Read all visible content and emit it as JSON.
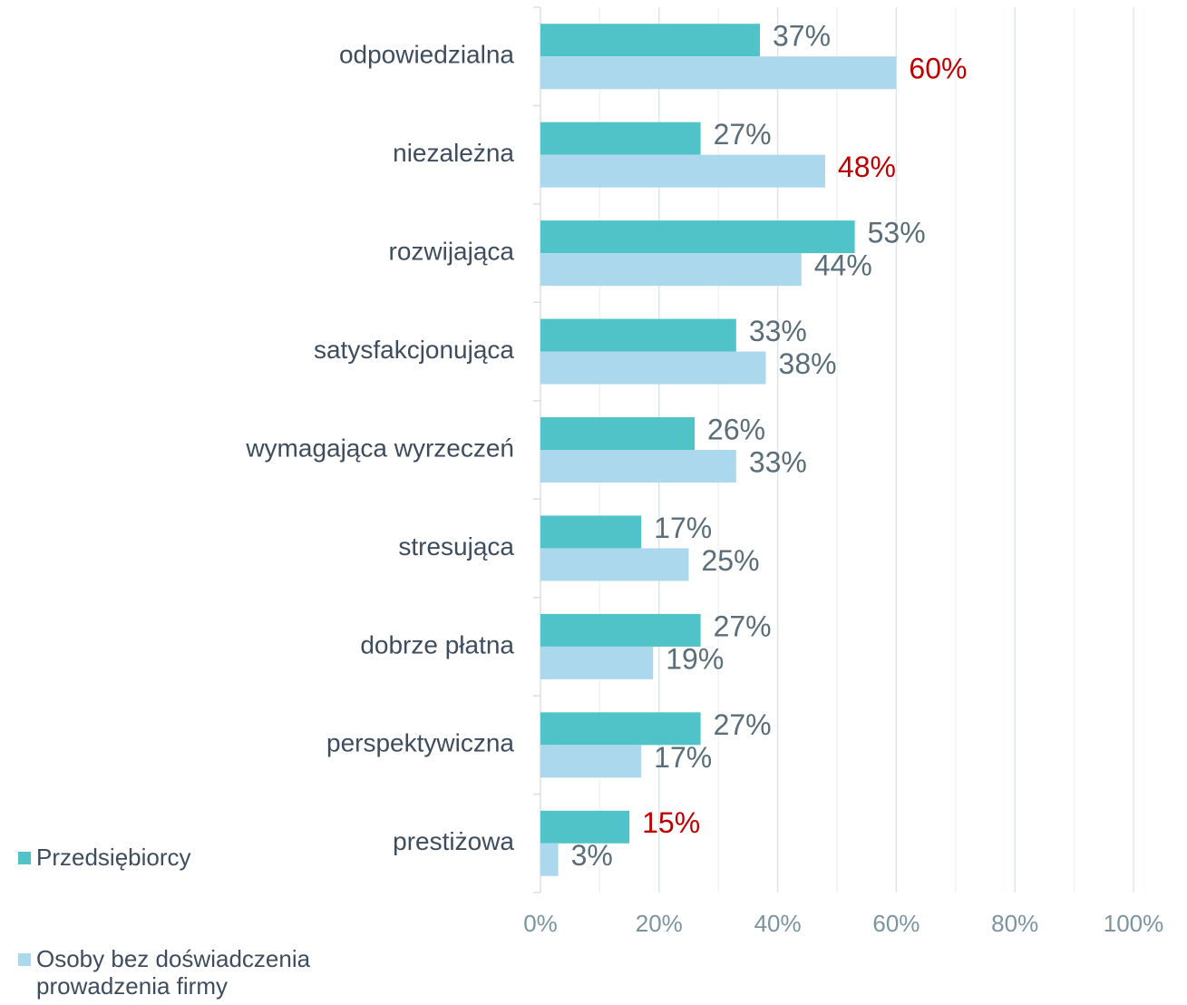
{
  "chart_data": {
    "type": "hbar",
    "categories": [
      "odpowiedzialna",
      "niezależna",
      "rozwijająca",
      "satysfakcjonująca",
      "wymagająca wyrzeczeń",
      "stresująca",
      "dobrze płatna",
      "perspektywiczna",
      "prestiżowa"
    ],
    "series": [
      {
        "name": "Przedsiębiorcy",
        "color": "#4fc3c8",
        "values": [
          37,
          27,
          53,
          33,
          26,
          17,
          27,
          27,
          15
        ],
        "value_labels": [
          "37%",
          "27%",
          "53%",
          "33%",
          "26%",
          "17%",
          "27%",
          "27%",
          "15%"
        ],
        "value_label_colors": [
          "#5a6e7a",
          "#5a6e7a",
          "#5a6e7a",
          "#5a6e7a",
          "#5a6e7a",
          "#5a6e7a",
          "#5a6e7a",
          "#5a6e7a",
          "#c00000"
        ]
      },
      {
        "name": "Osoby bez doświadczenia prowadzenia firmy",
        "color": "#acd8ee",
        "values": [
          60,
          48,
          44,
          38,
          33,
          25,
          19,
          17,
          3
        ],
        "value_labels": [
          "60%",
          "48%",
          "44%",
          "38%",
          "33%",
          "25%",
          "19%",
          "17%",
          "3%"
        ],
        "value_label_colors": [
          "#c00000",
          "#c00000",
          "#5a6e7a",
          "#5a6e7a",
          "#5a6e7a",
          "#5a6e7a",
          "#5a6e7a",
          "#5a6e7a",
          "#5a6e7a"
        ]
      }
    ],
    "xlim": [
      0,
      100
    ],
    "xticks": [
      {
        "value": 0,
        "label": "0%"
      },
      {
        "value": 20,
        "label": "20%"
      },
      {
        "value": 40,
        "label": "40%"
      },
      {
        "value": 60,
        "label": "60%"
      },
      {
        "value": 80,
        "label": "80%"
      },
      {
        "value": 100,
        "label": "100%"
      }
    ],
    "xminorticks": [
      10,
      30,
      50,
      70,
      90
    ],
    "grid": true
  }
}
